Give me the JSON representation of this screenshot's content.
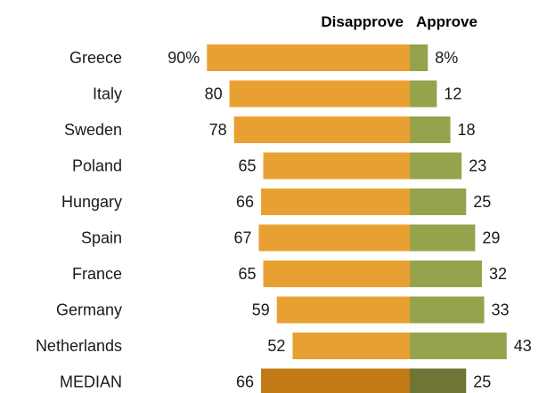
{
  "chart_data": {
    "type": "bar",
    "orientation": "horizontal-diverging",
    "headers": {
      "disapprove": "Disapprove",
      "approve": "Approve"
    },
    "categories": [
      "Greece",
      "Italy",
      "Sweden",
      "Poland",
      "Hungary",
      "Spain",
      "France",
      "Germany",
      "Netherlands",
      "MEDIAN"
    ],
    "series": [
      {
        "name": "Disapprove",
        "values": [
          90,
          80,
          78,
          65,
          66,
          67,
          65,
          59,
          52,
          66
        ]
      },
      {
        "name": "Approve",
        "values": [
          8,
          12,
          18,
          23,
          25,
          29,
          32,
          33,
          43,
          25
        ]
      }
    ],
    "value_labels": {
      "disapprove": [
        "90%",
        "80",
        "78",
        "65",
        "66",
        "67",
        "65",
        "59",
        "52",
        "66"
      ],
      "approve": [
        "8%",
        "12",
        "18",
        "23",
        "25",
        "29",
        "32",
        "33",
        "43",
        "25"
      ]
    },
    "colors": {
      "disapprove": "#E9A032",
      "approve": "#96A24C",
      "median_disapprove": "#C27A17",
      "median_approve": "#6E7535"
    },
    "grid": false,
    "legend": "none"
  }
}
